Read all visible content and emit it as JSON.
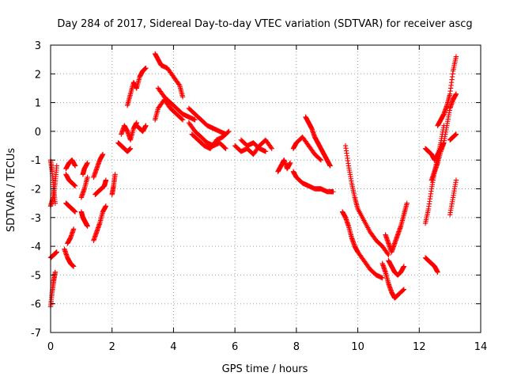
{
  "chart_data": {
    "type": "scatter",
    "title": "Day 284 of 2017, Sidereal Day-to-day VTEC variation (SDTVAR) for receiver ascg",
    "xlabel": "GPS time / hours",
    "ylabel": "SDTVAR / TECUs",
    "xlim": [
      0,
      14
    ],
    "ylim": [
      -7,
      3
    ],
    "xticks": [
      "0",
      "2",
      "4",
      "6",
      "8",
      "10",
      "12",
      "14"
    ],
    "yticks": [
      "-7",
      "-6",
      "-5",
      "-4",
      "-3",
      "-2",
      "-1",
      "0",
      "1",
      "2",
      "3"
    ],
    "grid": true,
    "marker": "+",
    "color": "#ff0000",
    "tracks": [
      {
        "x": [
          0.0,
          0.05,
          0.1,
          0.15
        ],
        "y": [
          -6.1,
          -5.6,
          -5.2,
          -4.9
        ]
      },
      {
        "x": [
          0.0,
          0.1,
          0.2
        ],
        "y": [
          -4.4,
          -4.3,
          -4.2
        ]
      },
      {
        "x": [
          0.0,
          0.08,
          0.15,
          0.2
        ],
        "y": [
          -2.6,
          -2.3,
          -1.8,
          -1.2
        ]
      },
      {
        "x": [
          0.0,
          0.05,
          0.1,
          0.15
        ],
        "y": [
          -1.0,
          -1.4,
          -2.0,
          -2.5
        ]
      },
      {
        "x": [
          0.45,
          0.55,
          0.65,
          0.75
        ],
        "y": [
          -4.1,
          -4.4,
          -4.6,
          -4.7
        ]
      },
      {
        "x": [
          0.55,
          0.65,
          0.75
        ],
        "y": [
          -3.9,
          -3.7,
          -3.4
        ]
      },
      {
        "x": [
          0.5,
          0.6,
          0.7,
          0.8
        ],
        "y": [
          -2.5,
          -2.6,
          -2.7,
          -2.8
        ]
      },
      {
        "x": [
          0.5,
          0.6,
          0.7,
          0.8
        ],
        "y": [
          -1.5,
          -1.7,
          -1.8,
          -1.9
        ]
      },
      {
        "x": [
          0.5,
          0.6,
          0.7,
          0.8
        ],
        "y": [
          -1.3,
          -1.1,
          -1.0,
          -1.2
        ]
      },
      {
        "x": [
          1.0,
          1.05,
          1.1,
          1.15,
          1.2
        ],
        "y": [
          -2.8,
          -3.0,
          -3.1,
          -3.2,
          -3.3
        ]
      },
      {
        "x": [
          1.0,
          1.1,
          1.2
        ],
        "y": [
          -2.3,
          -2.0,
          -1.6
        ]
      },
      {
        "x": [
          1.05,
          1.1,
          1.2
        ],
        "y": [
          -1.5,
          -1.3,
          -1.1
        ]
      },
      {
        "x": [
          1.4,
          1.5,
          1.6,
          1.7,
          1.8
        ],
        "y": [
          -3.8,
          -3.5,
          -3.2,
          -2.8,
          -2.6
        ]
      },
      {
        "x": [
          1.45,
          1.55,
          1.65,
          1.75,
          1.8
        ],
        "y": [
          -2.2,
          -2.1,
          -2.0,
          -1.9,
          -1.7
        ]
      },
      {
        "x": [
          1.4,
          1.5,
          1.6,
          1.7
        ],
        "y": [
          -1.6,
          -1.3,
          -1.0,
          -0.8
        ]
      },
      {
        "x": [
          2.0,
          2.05,
          2.1
        ],
        "y": [
          -2.2,
          -1.9,
          -1.5
        ]
      },
      {
        "x": [
          2.2,
          2.3,
          2.4,
          2.5,
          2.6
        ],
        "y": [
          -0.4,
          -0.5,
          -0.6,
          -0.7,
          -0.6
        ]
      },
      {
        "x": [
          2.3,
          2.4,
          2.5,
          2.6,
          2.7,
          2.8
        ],
        "y": [
          -0.1,
          0.2,
          0.0,
          -0.3,
          0.1,
          0.3
        ]
      },
      {
        "x": [
          2.5,
          2.6,
          2.7,
          2.8,
          2.9,
          3.0,
          3.1
        ],
        "y": [
          0.9,
          1.3,
          1.7,
          1.5,
          1.9,
          2.1,
          2.2
        ]
      },
      {
        "x": [
          2.8,
          2.9,
          3.0,
          3.1
        ],
        "y": [
          0.2,
          0.1,
          0.0,
          0.2
        ]
      },
      {
        "x": [
          3.4,
          3.5,
          3.6,
          3.8,
          4.0,
          4.2,
          4.3
        ],
        "y": [
          2.7,
          2.5,
          2.3,
          2.2,
          1.9,
          1.6,
          1.2
        ]
      },
      {
        "x": [
          3.4,
          3.5,
          3.7,
          3.9,
          4.1,
          4.3
        ],
        "y": [
          0.4,
          0.8,
          1.1,
          0.8,
          0.6,
          0.4
        ]
      },
      {
        "x": [
          3.5,
          3.7,
          3.9,
          4.1,
          4.3,
          4.5,
          4.7
        ],
        "y": [
          1.5,
          1.2,
          1.0,
          0.8,
          0.6,
          0.5,
          0.4
        ]
      },
      {
        "x": [
          4.5,
          4.7,
          4.9,
          5.1,
          5.3,
          5.5,
          5.7
        ],
        "y": [
          0.8,
          0.6,
          0.4,
          0.2,
          0.1,
          0.0,
          -0.1
        ]
      },
      {
        "x": [
          4.5,
          4.7,
          4.9,
          5.1,
          5.3,
          5.5,
          5.7
        ],
        "y": [
          0.3,
          0.0,
          -0.2,
          -0.4,
          -0.5,
          -0.4,
          -0.6
        ]
      },
      {
        "x": [
          4.6,
          4.8,
          5.0,
          5.2,
          5.4,
          5.6,
          5.8
        ],
        "y": [
          -0.1,
          -0.3,
          -0.5,
          -0.6,
          -0.3,
          -0.2,
          0.0
        ]
      },
      {
        "x": [
          6.0,
          6.2,
          6.4,
          6.6,
          6.8,
          7.0,
          7.2
        ],
        "y": [
          -0.5,
          -0.7,
          -0.6,
          -0.8,
          -0.5,
          -0.3,
          -0.6
        ]
      },
      {
        "x": [
          6.2,
          6.4,
          6.6,
          6.8,
          7.0
        ],
        "y": [
          -0.3,
          -0.5,
          -0.4,
          -0.6,
          -0.7
        ]
      },
      {
        "x": [
          7.4,
          7.5,
          7.6,
          7.7,
          7.8
        ],
        "y": [
          -1.4,
          -1.2,
          -1.0,
          -1.3,
          -1.1
        ]
      },
      {
        "x": [
          7.9,
          8.0,
          8.2,
          8.4,
          8.6,
          8.8,
          9.0,
          9.2
        ],
        "y": [
          -1.4,
          -1.6,
          -1.8,
          -1.9,
          -2.0,
          -2.0,
          -2.1,
          -2.1
        ]
      },
      {
        "x": [
          7.9,
          8.0,
          8.2,
          8.4,
          8.6,
          8.8
        ],
        "y": [
          -0.6,
          -0.4,
          -0.2,
          -0.5,
          -0.8,
          -1.0
        ]
      },
      {
        "x": [
          8.3,
          8.4,
          8.5,
          8.6,
          8.7,
          8.8,
          8.9,
          9.0,
          9.1
        ],
        "y": [
          0.5,
          0.3,
          0.1,
          -0.2,
          -0.4,
          -0.6,
          -0.8,
          -1.0,
          -1.2
        ]
      },
      {
        "x": [
          9.5,
          9.6,
          9.7,
          9.8,
          9.9,
          10.0,
          10.2,
          10.4,
          10.6,
          10.8
        ],
        "y": [
          -2.8,
          -3.0,
          -3.3,
          -3.7,
          -4.0,
          -4.2,
          -4.5,
          -4.8,
          -5.0,
          -5.1
        ]
      },
      {
        "x": [
          9.6,
          9.7,
          9.8,
          9.9,
          10.0,
          10.2,
          10.4,
          10.6,
          10.8,
          11.0
        ],
        "y": [
          -0.5,
          -1.2,
          -1.8,
          -2.3,
          -2.7,
          -3.1,
          -3.5,
          -3.8,
          -4.0,
          -4.3
        ]
      },
      {
        "x": [
          10.8,
          10.9,
          11.0,
          11.1,
          11.2,
          11.3,
          11.5
        ],
        "y": [
          -4.6,
          -4.9,
          -5.3,
          -5.6,
          -5.8,
          -5.7,
          -5.5
        ]
      },
      {
        "x": [
          10.9,
          11.0,
          11.1,
          11.2,
          11.3,
          11.4,
          11.5,
          11.6
        ],
        "y": [
          -3.6,
          -3.9,
          -4.2,
          -3.9,
          -3.6,
          -3.3,
          -2.9,
          -2.5
        ]
      },
      {
        "x": [
          11.0,
          11.1,
          11.2,
          11.3,
          11.4,
          11.5
        ],
        "y": [
          -4.5,
          -4.7,
          -4.9,
          -5.0,
          -4.9,
          -4.7
        ]
      },
      {
        "x": [
          12.2,
          12.3,
          12.4,
          12.5,
          12.6
        ],
        "y": [
          -4.4,
          -4.5,
          -4.6,
          -4.7,
          -4.9
        ]
      },
      {
        "x": [
          12.2,
          12.3,
          12.4,
          12.5,
          12.6,
          12.7,
          12.8
        ],
        "y": [
          -3.2,
          -2.7,
          -2.0,
          -1.4,
          -0.9,
          -0.4,
          0.2
        ]
      },
      {
        "x": [
          12.2,
          12.3,
          12.4,
          12.5,
          12.6,
          12.7,
          12.8
        ],
        "y": [
          -0.6,
          -0.7,
          -0.8,
          -1.0,
          -0.8,
          -0.6,
          -0.4
        ]
      },
      {
        "x": [
          12.4,
          12.5,
          12.6,
          12.7,
          12.8,
          12.9,
          13.0,
          13.1,
          13.2
        ],
        "y": [
          -1.7,
          -1.4,
          -1.1,
          -0.7,
          -0.4,
          0.2,
          0.8,
          1.1,
          1.3
        ]
      },
      {
        "x": [
          12.6,
          12.7,
          12.8,
          12.9,
          13.0,
          13.1,
          13.2
        ],
        "y": [
          0.2,
          0.4,
          0.6,
          0.9,
          1.3,
          2.1,
          2.6
        ]
      },
      {
        "x": [
          13.0,
          13.1,
          13.2
        ],
        "y": [
          -0.3,
          -0.2,
          -0.1
        ]
      },
      {
        "x": [
          13.0,
          13.1,
          13.2
        ],
        "y": [
          -2.9,
          -2.3,
          -1.7
        ]
      }
    ]
  }
}
